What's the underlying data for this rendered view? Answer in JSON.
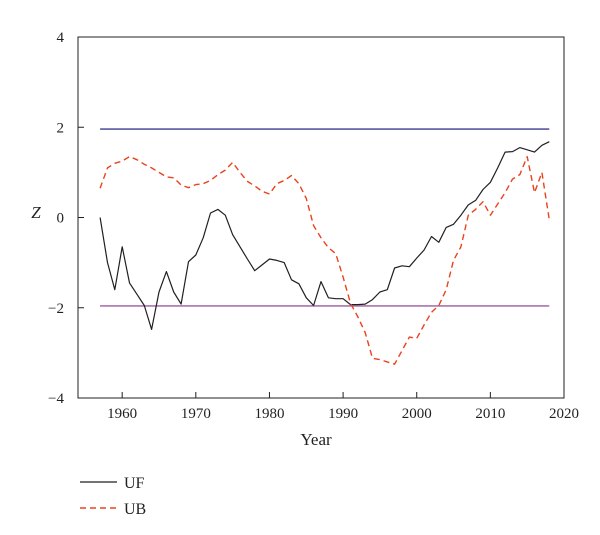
{
  "chart_data": {
    "type": "line",
    "title": "",
    "xlabel": "Year",
    "ylabel": "Z",
    "xlim": [
      1954,
      2020
    ],
    "ylim": [
      -4,
      4
    ],
    "xticks": [
      1960,
      1970,
      1980,
      1990,
      2000,
      2010,
      2020
    ],
    "yticks": [
      -4,
      -2,
      0,
      2,
      4
    ],
    "ytick_labels": [
      "−4",
      "−2",
      "0",
      "2",
      "4"
    ],
    "grid": false,
    "legend_position": "bottom-left, outside plot",
    "reference_lines": [
      {
        "y": 1.96,
        "color": "#3b3b8f"
      },
      {
        "y": -1.96,
        "color": "#9b5aa0"
      }
    ],
    "series": [
      {
        "name": "UF",
        "style": "solid",
        "color": "#231f20",
        "x": [
          1957,
          1958,
          1959,
          1960,
          1961,
          1962,
          1963,
          1964,
          1965,
          1966,
          1967,
          1968,
          1969,
          1970,
          1971,
          1972,
          1973,
          1974,
          1975,
          1976,
          1977,
          1978,
          1979,
          1980,
          1981,
          1982,
          1983,
          1984,
          1985,
          1986,
          1987,
          1988,
          1989,
          1990,
          1991,
          1992,
          1993,
          1994,
          1995,
          1996,
          1997,
          1998,
          1999,
          2000,
          2001,
          2002,
          2003,
          2004,
          2005,
          2006,
          2007,
          2008,
          2009,
          2010,
          2011,
          2012,
          2013,
          2014,
          2015,
          2016,
          2017,
          2018
        ],
        "y": [
          0.0,
          -1.0,
          -1.6,
          -0.65,
          -1.45,
          -1.7,
          -1.95,
          -2.48,
          -1.65,
          -1.2,
          -1.65,
          -1.92,
          -0.98,
          -0.83,
          -0.45,
          0.1,
          0.18,
          0.05,
          -0.38,
          -0.65,
          -0.92,
          -1.18,
          -1.05,
          -0.92,
          -0.95,
          -1.0,
          -1.38,
          -1.47,
          -1.78,
          -1.95,
          -1.42,
          -1.78,
          -1.8,
          -1.8,
          -1.93,
          -1.93,
          -1.92,
          -1.82,
          -1.65,
          -1.6,
          -1.12,
          -1.07,
          -1.09,
          -0.9,
          -0.72,
          -0.42,
          -0.55,
          -0.22,
          -0.15,
          0.05,
          0.28,
          0.38,
          0.62,
          0.78,
          1.1,
          1.45,
          1.46,
          1.55,
          1.5,
          1.45,
          1.6,
          1.68
        ]
      },
      {
        "name": "UB",
        "style": "dashed",
        "color": "#e8431d",
        "x": [
          1957,
          1958,
          1959,
          1960,
          1961,
          1962,
          1963,
          1964,
          1965,
          1966,
          1967,
          1968,
          1969,
          1970,
          1971,
          1972,
          1973,
          1974,
          1975,
          1976,
          1977,
          1978,
          1979,
          1980,
          1981,
          1982,
          1983,
          1984,
          1985,
          1986,
          1987,
          1988,
          1989,
          1990,
          1991,
          1992,
          1993,
          1994,
          1995,
          1996,
          1997,
          1998,
          1999,
          2000,
          2001,
          2002,
          2003,
          2004,
          2005,
          2006,
          2007,
          2008,
          2009,
          2010,
          2011,
          2012,
          2013,
          2014,
          2015,
          2016,
          2017,
          2018
        ],
        "y": [
          0.65,
          1.1,
          1.2,
          1.25,
          1.35,
          1.28,
          1.18,
          1.1,
          1.0,
          0.9,
          0.88,
          0.72,
          0.66,
          0.73,
          0.75,
          0.82,
          0.95,
          1.05,
          1.22,
          1.0,
          0.8,
          0.7,
          0.58,
          0.52,
          0.75,
          0.82,
          0.93,
          0.75,
          0.42,
          -0.18,
          -0.45,
          -0.67,
          -0.8,
          -1.32,
          -1.9,
          -2.2,
          -2.55,
          -3.12,
          -3.15,
          -3.2,
          -3.25,
          -2.95,
          -2.65,
          -2.68,
          -2.38,
          -2.1,
          -1.95,
          -1.6,
          -0.95,
          -0.65,
          0.05,
          0.18,
          0.35,
          0.05,
          0.3,
          0.55,
          0.85,
          0.95,
          1.35,
          0.55,
          1.0,
          -0.05
        ]
      }
    ]
  }
}
